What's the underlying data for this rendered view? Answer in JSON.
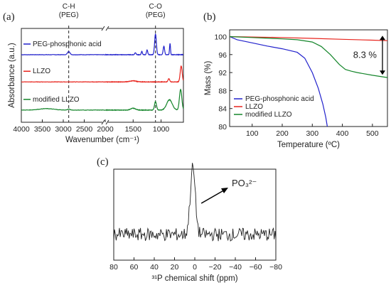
{
  "panels": {
    "a": "(a)",
    "b": "(b)",
    "c": "(c)"
  },
  "chart_data": [
    {
      "type": "line",
      "panel": "(a)",
      "xlabel": "Wavenumber (cm⁻¹)",
      "ylabel": "Absorbance (a.u.)",
      "x_breaks": [
        [
          4000,
          2000
        ],
        [
          2000,
          600
        ]
      ],
      "xticks": [
        "4000",
        "3500",
        "3000",
        "2500",
        "2000",
        "1500",
        "1000"
      ],
      "annotations": [
        {
          "label": "C-H",
          "sub": "(PEG)",
          "x": 2870
        },
        {
          "label": "C-O",
          "sub": "(PEG)",
          "x": 1100
        }
      ],
      "series": [
        {
          "name": "PEG-phosphonic acid",
          "color": "#2222cc",
          "baseline": 0.72,
          "peaks": [
            [
              2870,
              0.035,
              40
            ],
            [
              1460,
              0.02,
              18
            ],
            [
              1345,
              0.035,
              14
            ],
            [
              1250,
              0.05,
              16
            ],
            [
              1100,
              0.22,
              22
            ],
            [
              950,
              0.09,
              18
            ],
            [
              840,
              0.12,
              12
            ]
          ]
        },
        {
          "name": "LLZO",
          "color": "#e8241d",
          "baseline": 0.43,
          "peaks": [
            [
              1500,
              0.012,
              80
            ],
            [
              860,
              0.035,
              20
            ],
            [
              640,
              0.17,
              25
            ]
          ]
        },
        {
          "name": "modified LLZO",
          "color": "#14852a",
          "baseline": 0.13,
          "peaks": [
            [
              3400,
              0.015,
              250
            ],
            [
              2870,
              0.01,
              40
            ],
            [
              1500,
              0.02,
              60
            ],
            [
              1100,
              0.09,
              25
            ],
            [
              850,
              0.11,
              70
            ],
            [
              650,
              0.22,
              30
            ]
          ]
        }
      ]
    },
    {
      "type": "line",
      "panel": "(b)",
      "xlabel": "Temperature (ºC)",
      "ylabel": "Mass (%)",
      "xlim": [
        25,
        550
      ],
      "ylim": [
        80,
        101.5
      ],
      "xticks": [
        100,
        200,
        300,
        400,
        500
      ],
      "yticks": [
        80,
        84,
        88,
        92,
        96,
        100
      ],
      "annotation": "8.3 %",
      "series": [
        {
          "name": "PEG-phosphonic acid",
          "color": "#2222cc",
          "x": [
            25,
            50,
            100,
            150,
            200,
            250,
            275,
            300,
            320,
            335,
            345,
            350
          ],
          "y": [
            100,
            99.3,
            98.6,
            97.9,
            97.3,
            96.5,
            95.2,
            92.0,
            88.5,
            85.0,
            82.0,
            80.0
          ]
        },
        {
          "name": "LLZO",
          "color": "#e8241d",
          "x": [
            25,
            100,
            200,
            300,
            400,
            500,
            550
          ],
          "y": [
            100,
            99.9,
            99.8,
            99.6,
            99.4,
            99.2,
            99.1
          ]
        },
        {
          "name": "modified LLZO",
          "color": "#14852a",
          "x": [
            25,
            100,
            200,
            250,
            300,
            330,
            360,
            390,
            410,
            430,
            450,
            500,
            550
          ],
          "y": [
            100,
            99.8,
            99.5,
            99.3,
            98.8,
            97.8,
            96.0,
            93.8,
            92.7,
            92.3,
            92.0,
            91.4,
            90.9
          ]
        }
      ]
    },
    {
      "type": "line",
      "panel": "(c)",
      "xlabel": "³¹P chemical shift (ppm)",
      "xlim": [
        80,
        -80
      ],
      "xticks": [
        80,
        60,
        40,
        20,
        0,
        -20,
        -40,
        -60,
        -80
      ],
      "annotation": "PO₃²⁻",
      "series": [
        {
          "name": "",
          "color": "#222222",
          "peak_center": 2,
          "peak_height": 1.0,
          "peak_width": 3.5,
          "noise": 0.07
        }
      ]
    }
  ]
}
